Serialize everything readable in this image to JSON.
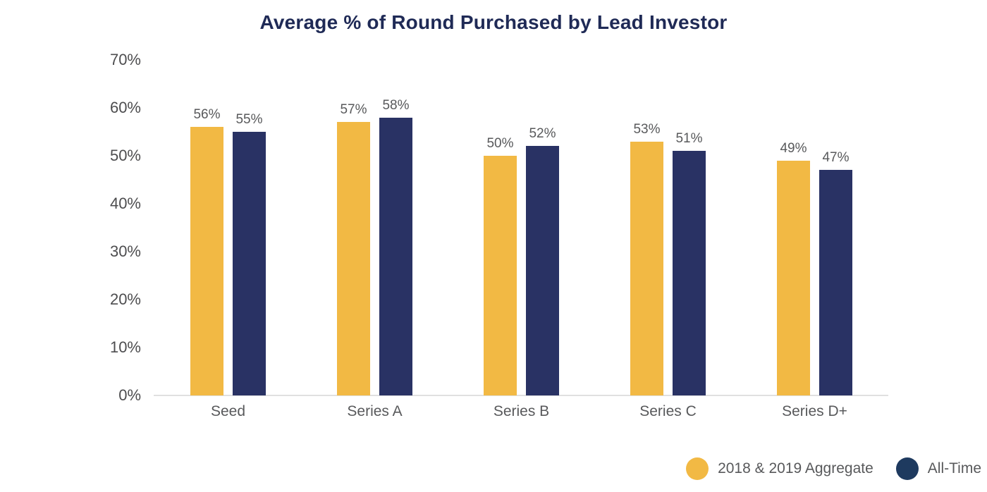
{
  "title": "Average % of Round Purchased by Lead Investor",
  "colors": {
    "title": "#1f2a56",
    "aggregate_series": "#f2b944",
    "alltime_series": "#293264",
    "alltime_legend_dot": "#1e3a5f",
    "axis_line": "#e0e0e0",
    "tick_text": "#4d4d4f",
    "label_text": "#58595b",
    "background": "#ffffff"
  },
  "chart_data": {
    "type": "bar",
    "title": "Average % of Round Purchased by Lead Investor",
    "categories": [
      "Seed",
      "Series A",
      "Series B",
      "Series C",
      "Series D+"
    ],
    "series": [
      {
        "name": "2018 & 2019 Aggregate",
        "color": "#f2b944",
        "values": [
          56,
          57,
          50,
          53,
          49
        ]
      },
      {
        "name": "All-Time",
        "color": "#293264",
        "values": [
          55,
          58,
          52,
          51,
          47
        ]
      }
    ],
    "data_labels": [
      "56%",
      "55%",
      "57%",
      "58%",
      "50%",
      "52%",
      "53%",
      "51%",
      "49%",
      "47%"
    ],
    "value_suffix": "%",
    "xlabel": "",
    "ylabel": "",
    "ylim": [
      0,
      70
    ],
    "yticks": [
      0,
      10,
      20,
      30,
      40,
      50,
      60,
      70
    ],
    "ytick_labels": [
      "0%",
      "10%",
      "20%",
      "30%",
      "40%",
      "50%",
      "60%",
      "70%"
    ],
    "grid": false,
    "legend_position": "bottom-right",
    "bar_value_labels_visible": true
  },
  "legend": {
    "items": [
      {
        "label": "2018 & 2019 Aggregate",
        "color": "#f2b944"
      },
      {
        "label": "All-Time",
        "color": "#1e3a5f"
      }
    ]
  }
}
